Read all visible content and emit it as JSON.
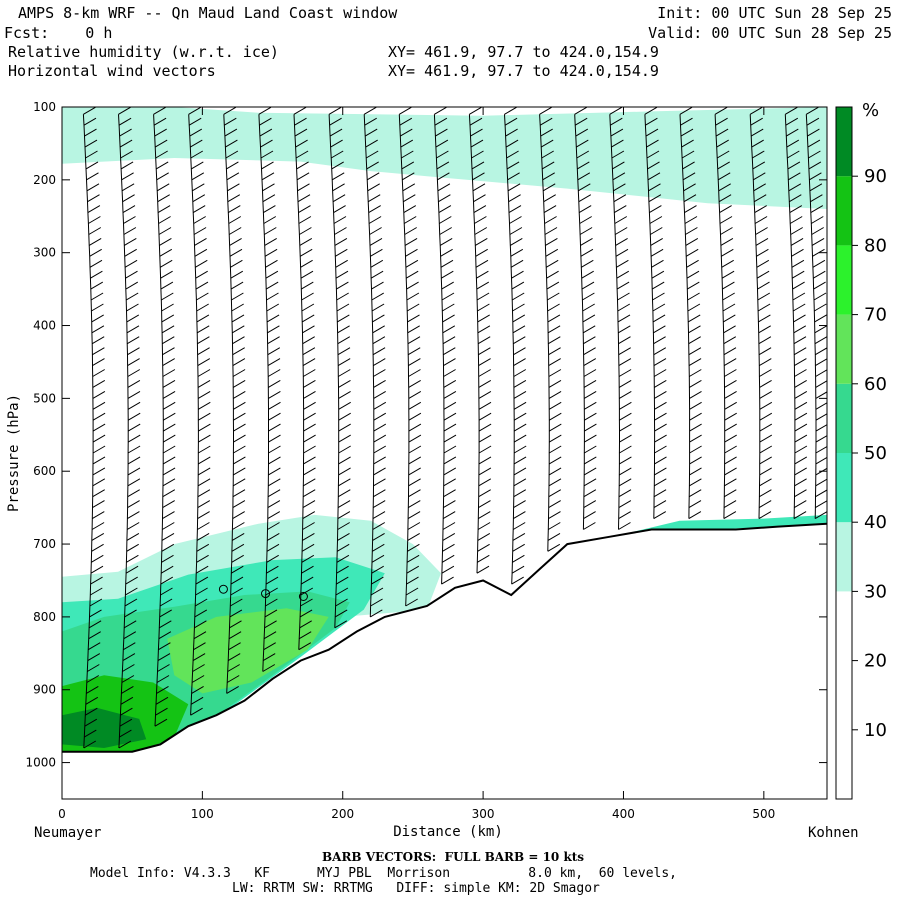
{
  "header": {
    "title": "AMPS 8-km WRF -- Qn Maud Land Coast window",
    "forecast": "Fcst:    0 h",
    "init": "Init: 00 UTC Sun 28 Sep 25",
    "valid": "Valid: 00 UTC Sun 28 Sep 25",
    "field1": "Relative humidity (w.r.t. ice)",
    "field2": "Horizontal wind vectors",
    "xy1": "XY= 461.9, 97.7 to 424.0,154.9",
    "xy2": "XY= 461.9, 97.7 to 424.0,154.9"
  },
  "footer": {
    "barb_note": "BARB VECTORS:  FULL BARB = 10 kts",
    "model_line1": "Model Info: V4.3.3   KF      MYJ PBL  Morrison          8.0 km,  60 levels,",
    "model_line2": "LW: RRTM SW: RRTMG   DIFF: simple KM: 2D Smagor"
  },
  "chart_data": {
    "type": "heatmap",
    "title": "Relative humidity (w.r.t. ice)",
    "xlabel": "Distance (km)",
    "ylabel": "Pressure (hPa)",
    "x_left_label": "Neumayer",
    "x_right_label": "Kohnen",
    "xlim": [
      0,
      545
    ],
    "ylim": [
      1050,
      100
    ],
    "x_ticks": [
      0,
      100,
      200,
      300,
      400,
      500
    ],
    "y_ticks": [
      100,
      200,
      300,
      400,
      500,
      600,
      700,
      800,
      900,
      1000
    ],
    "colorbar": {
      "unit": "%",
      "levels": [
        0,
        10,
        20,
        30,
        40,
        50,
        60,
        70,
        80,
        90,
        100
      ],
      "tick_labels": [
        10,
        20,
        30,
        40,
        50,
        60,
        70,
        80,
        90
      ],
      "colors": [
        "#ffffff",
        "#ffffff",
        "#ffffff",
        "#b8f5e2",
        "#3fe8b8",
        "#36d98f",
        "#62e45a",
        "#2cf22c",
        "#14c314",
        "#008a24"
      ]
    },
    "terrain_surface": {
      "distance_km": [
        0,
        50,
        70,
        90,
        110,
        130,
        150,
        170,
        190,
        210,
        230,
        260,
        280,
        300,
        320,
        340,
        360,
        390,
        420,
        450,
        480,
        510,
        545
      ],
      "pressure_hPa": [
        985,
        985,
        975,
        950,
        935,
        915,
        885,
        860,
        845,
        820,
        800,
        785,
        760,
        750,
        770,
        735,
        700,
        690,
        680,
        680,
        680,
        676,
        672
      ]
    },
    "rh_regions": [
      {
        "level": "30-40",
        "color": "#b8f5e2",
        "description_pressure_range": [
          100,
          240
        ]
      },
      {
        "level": "30-40",
        "color": "#b8f5e2",
        "description_pressure_range": [
          660,
          985
        ]
      },
      {
        "level": "40-50",
        "color": "#3fe8b8",
        "description_pressure_range": [
          740,
          985
        ]
      },
      {
        "level": "50-60",
        "color": "#36d98f",
        "description_pressure_range": [
          790,
          985
        ]
      },
      {
        "level": "60-70",
        "color": "#62e45a",
        "description_pressure_range": [
          780,
          880
        ]
      },
      {
        "level": "80-90",
        "color": "#14c314",
        "description_pressure_range": [
          890,
          985
        ]
      },
      {
        "level": "90-100",
        "color": "#008a24",
        "description_pressure_range": [
          930,
          980
        ]
      }
    ],
    "barb_columns_km": [
      25,
      50,
      75,
      100,
      125,
      150,
      175,
      200,
      225,
      250,
      275,
      300,
      325,
      350,
      375,
      400,
      425,
      450,
      475,
      500,
      525,
      540
    ],
    "calm_markers": [
      {
        "x": 115,
        "p": 762
      },
      {
        "x": 145,
        "p": 768
      },
      {
        "x": 172,
        "p": 772
      }
    ]
  }
}
